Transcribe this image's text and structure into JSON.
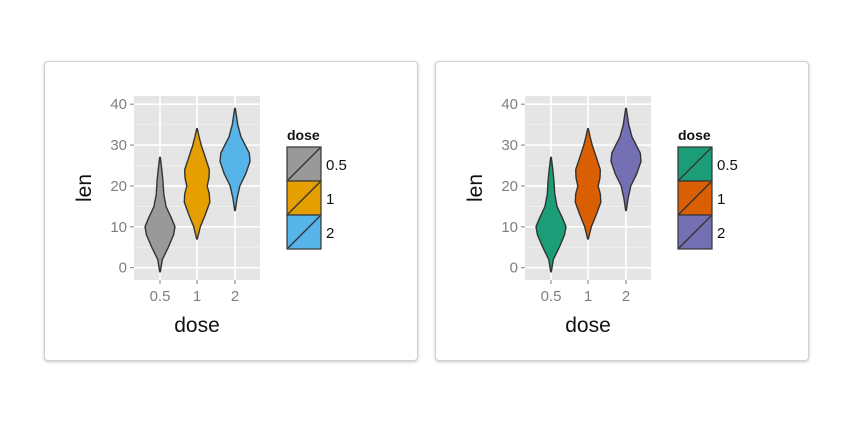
{
  "chart_data": [
    {
      "type": "violin",
      "x": "dose",
      "y": "len",
      "xlabel": "dose",
      "ylabel": "len",
      "categories": [
        "0.5",
        "1",
        "2"
      ],
      "ylim": [
        -3,
        42
      ],
      "yticks": [
        0,
        10,
        20,
        30,
        40
      ],
      "grid": true,
      "legend": {
        "title": "dose",
        "position": "right",
        "labels": [
          "0.5",
          "1",
          "2"
        ]
      },
      "series": [
        {
          "name": "0.5",
          "color": "#999999",
          "min": -1,
          "max": 27,
          "profile": [
            [
              -1,
              0.02
            ],
            [
              2,
              0.15
            ],
            [
              5,
              0.55
            ],
            [
              8,
              0.9
            ],
            [
              10,
              1.0
            ],
            [
              12,
              0.78
            ],
            [
              15,
              0.4
            ],
            [
              18,
              0.25
            ],
            [
              21,
              0.2
            ],
            [
              24,
              0.12
            ],
            [
              27,
              0.02
            ]
          ]
        },
        {
          "name": "1",
          "color": "#E69F00",
          "min": 7,
          "max": 34,
          "profile": [
            [
              7,
              0.02
            ],
            [
              10,
              0.22
            ],
            [
              13,
              0.55
            ],
            [
              16,
              0.85
            ],
            [
              18,
              0.82
            ],
            [
              20,
              0.68
            ],
            [
              22,
              0.8
            ],
            [
              24,
              0.82
            ],
            [
              27,
              0.55
            ],
            [
              30,
              0.28
            ],
            [
              32,
              0.14
            ],
            [
              34,
              0.02
            ]
          ]
        },
        {
          "name": "2",
          "color": "#56B4E9",
          "min": 14,
          "max": 39,
          "profile": [
            [
              14,
              0.02
            ],
            [
              17,
              0.14
            ],
            [
              20,
              0.32
            ],
            [
              23,
              0.72
            ],
            [
              26,
              1.0
            ],
            [
              28,
              0.95
            ],
            [
              30,
              0.68
            ],
            [
              32,
              0.4
            ],
            [
              35,
              0.18
            ],
            [
              37,
              0.1
            ],
            [
              39,
              0.02
            ]
          ]
        }
      ]
    },
    {
      "type": "violin",
      "x": "dose",
      "y": "len",
      "xlabel": "dose",
      "ylabel": "len",
      "categories": [
        "0.5",
        "1",
        "2"
      ],
      "ylim": [
        -3,
        42
      ],
      "yticks": [
        0,
        10,
        20,
        30,
        40
      ],
      "grid": true,
      "legend": {
        "title": "dose",
        "position": "right",
        "labels": [
          "0.5",
          "1",
          "2"
        ]
      },
      "series": [
        {
          "name": "0.5",
          "color": "#1B9E77",
          "min": -1,
          "max": 27,
          "profile": [
            [
              -1,
              0.02
            ],
            [
              2,
              0.15
            ],
            [
              5,
              0.55
            ],
            [
              8,
              0.9
            ],
            [
              10,
              1.0
            ],
            [
              12,
              0.78
            ],
            [
              15,
              0.4
            ],
            [
              18,
              0.25
            ],
            [
              21,
              0.2
            ],
            [
              24,
              0.12
            ],
            [
              27,
              0.02
            ]
          ]
        },
        {
          "name": "1",
          "color": "#D95F02",
          "min": 7,
          "max": 34,
          "profile": [
            [
              7,
              0.02
            ],
            [
              10,
              0.22
            ],
            [
              13,
              0.55
            ],
            [
              16,
              0.85
            ],
            [
              18,
              0.82
            ],
            [
              20,
              0.68
            ],
            [
              22,
              0.8
            ],
            [
              24,
              0.82
            ],
            [
              27,
              0.55
            ],
            [
              30,
              0.28
            ],
            [
              32,
              0.14
            ],
            [
              34,
              0.02
            ]
          ]
        },
        {
          "name": "2",
          "color": "#7570B3",
          "min": 14,
          "max": 39,
          "profile": [
            [
              14,
              0.02
            ],
            [
              17,
              0.14
            ],
            [
              20,
              0.32
            ],
            [
              23,
              0.72
            ],
            [
              26,
              1.0
            ],
            [
              28,
              0.95
            ],
            [
              30,
              0.68
            ],
            [
              32,
              0.4
            ],
            [
              35,
              0.18
            ],
            [
              37,
              0.1
            ],
            [
              39,
              0.02
            ]
          ]
        }
      ]
    }
  ]
}
